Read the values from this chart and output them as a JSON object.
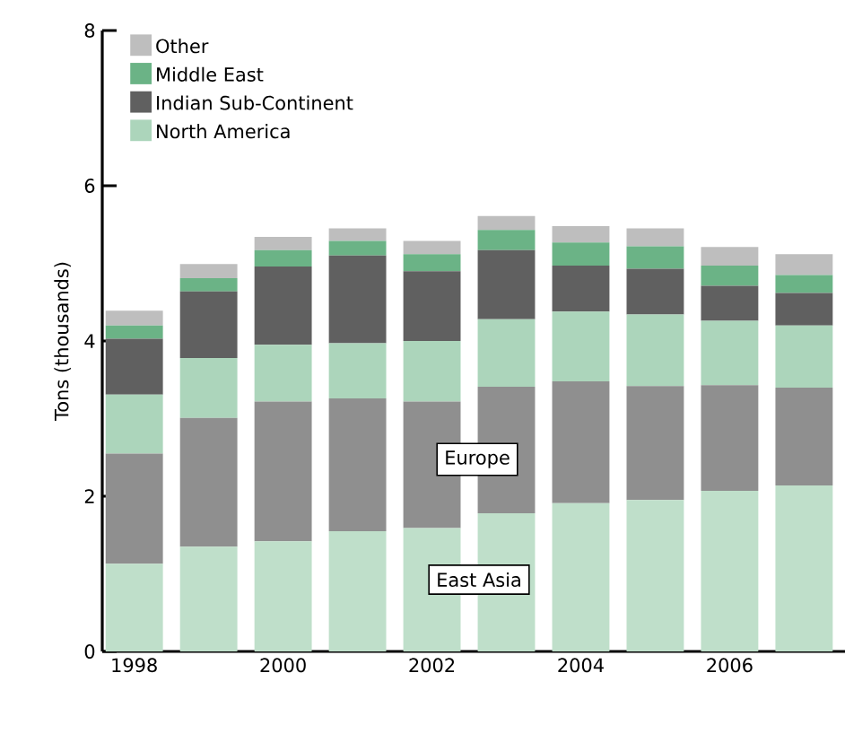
{
  "chart_data": {
    "type": "bar",
    "stacked": true,
    "ylabel": "Tons (thousands)",
    "categories": [
      "1998",
      null,
      "2000",
      null,
      "2002",
      null,
      "2004",
      null,
      "2006",
      null
    ],
    "ylim": [
      0,
      8
    ],
    "yticks": [
      0,
      2,
      4,
      6,
      8
    ],
    "grid": false,
    "legend": "top left",
    "series": [
      {
        "color": "#bfdfca",
        "values": [
          1.13,
          1.35,
          1.42,
          1.55,
          1.59,
          1.78,
          1.91,
          1.95,
          2.07,
          2.14
        ]
      },
      {
        "color": "#8f8f8f",
        "values": [
          1.42,
          1.66,
          1.8,
          1.71,
          1.63,
          1.63,
          1.57,
          1.47,
          1.36,
          1.26
        ]
      },
      {
        "name": "North America",
        "color": "#acd5bb",
        "values": [
          0.76,
          0.77,
          0.73,
          0.71,
          0.78,
          0.87,
          0.9,
          0.92,
          0.83,
          0.8
        ]
      },
      {
        "name": "Indian Sub-Continent",
        "color": "#606060",
        "values": [
          0.72,
          0.86,
          1.01,
          1.13,
          0.9,
          0.89,
          0.59,
          0.59,
          0.45,
          0.42
        ]
      },
      {
        "name": "Middle East",
        "color": "#6bb386",
        "values": [
          0.17,
          0.17,
          0.21,
          0.19,
          0.22,
          0.26,
          0.3,
          0.29,
          0.26,
          0.23
        ]
      },
      {
        "name": "Other",
        "color": "#bebebe",
        "values": [
          0.19,
          0.18,
          0.17,
          0.16,
          0.17,
          0.18,
          0.21,
          0.23,
          0.24,
          0.27
        ]
      }
    ],
    "annotations": [
      "Europe",
      "East Asia"
    ]
  }
}
